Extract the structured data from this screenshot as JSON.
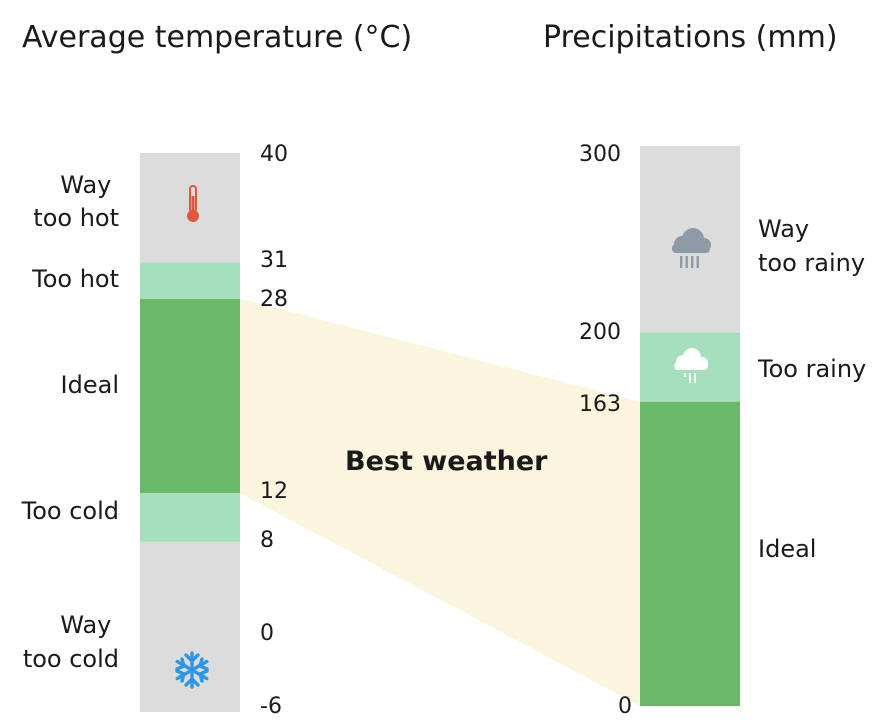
{
  "temperature": {
    "title": "Average temperature (°C)",
    "scale": [
      -6,
      40
    ],
    "ticks": [
      "40",
      "31",
      "28",
      "12",
      "8",
      "0",
      "-6"
    ],
    "zones": [
      {
        "range": [
          31,
          40
        ],
        "color": "#dcdcdc",
        "label_lines": [
          "Way",
          "too hot"
        ],
        "icon": "thermometer-icon"
      },
      {
        "range": [
          28,
          31
        ],
        "color": "#a6dfbc",
        "label_lines": [
          "Too hot"
        ]
      },
      {
        "range": [
          12,
          28
        ],
        "color": "#6ab86a",
        "label_lines": [
          "Ideal"
        ]
      },
      {
        "range": [
          8,
          12
        ],
        "color": "#a6dfbc",
        "label_lines": [
          "Too cold"
        ]
      },
      {
        "range": [
          -6,
          8
        ],
        "color": "#dcdcdc",
        "label_lines": [
          "Way",
          "too cold"
        ],
        "icon": "snowflake-icon"
      }
    ],
    "ideal_range": [
      12,
      28
    ]
  },
  "precipitation": {
    "title": "Precipitations (mm)",
    "scale": [
      0,
      300
    ],
    "ticks": [
      "300",
      "200",
      "163",
      "0"
    ],
    "zones": [
      {
        "range": [
          200,
          300
        ],
        "color": "#dcdcdc",
        "label_lines": [
          "Way",
          "too rainy"
        ],
        "icon": "heavy-rain-cloud-icon"
      },
      {
        "range": [
          163,
          200
        ],
        "color": "#a6dfbc",
        "label_lines": [
          "Too rainy"
        ],
        "icon": "light-rain-cloud-icon"
      },
      {
        "range": [
          0,
          163
        ],
        "color": "#6ab86a",
        "label_lines": [
          "Ideal"
        ]
      }
    ],
    "ideal_range": [
      0,
      163
    ]
  },
  "connector": {
    "label": "Best weather",
    "color": "#fbf5dd"
  },
  "colors": {
    "thermometer": "#e2553f",
    "snowflake": "#2f96e6",
    "heavy_cloud": "#8e9aa6",
    "light_cloud": "#ffffff"
  }
}
